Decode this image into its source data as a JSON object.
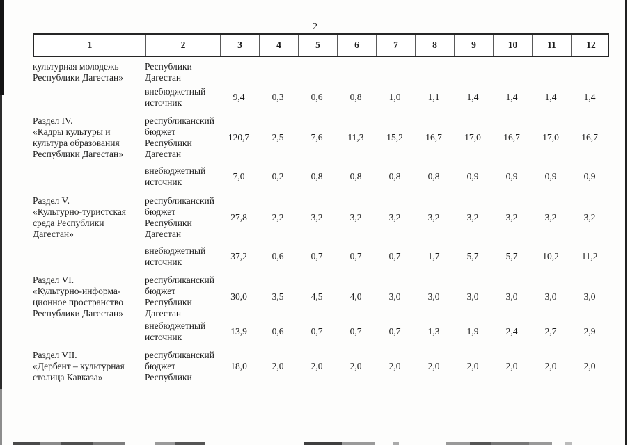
{
  "page_number": "2",
  "table": {
    "header_columns": [
      "1",
      "2",
      "3",
      "4",
      "5",
      "6",
      "7",
      "8",
      "9",
      "10",
      "11",
      "12"
    ],
    "rows": [
      {
        "section": "культурная молодежь\nРеспублики Дагестан»",
        "source": "Республики\nДагестан",
        "values": [
          "",
          "",
          "",
          "",
          "",
          "",
          "",
          "",
          "",
          ""
        ]
      },
      {
        "section": "",
        "source": "внебюджетный\nисточник",
        "values": [
          "9,4",
          "0,3",
          "0,6",
          "0,8",
          "1,0",
          "1,1",
          "1,4",
          "1,4",
          "1,4",
          "1,4"
        ]
      },
      {
        "section": "Раздел IV.\n«Кадры культуры и\nкультура образования\nРеспублики Дагестан»",
        "source": "республиканский\nбюджет\nРеспублики\nДагестан",
        "values": [
          "120,7",
          "2,5",
          "7,6",
          "11,3",
          "15,2",
          "16,7",
          "17,0",
          "16,7",
          "17,0",
          "16,7"
        ]
      },
      {
        "section": "",
        "source": "внебюджетный\nисточник",
        "values": [
          "7,0",
          "0,2",
          "0,8",
          "0,8",
          "0,8",
          "0,8",
          "0,9",
          "0,9",
          "0,9",
          "0,9"
        ]
      },
      {
        "section": "Раздел V.\n«Культурно-туристская\nсреда Республики\nДагестан»",
        "source": "республиканский\nбюджет\nРеспублики\nДагестан",
        "values": [
          "27,8",
          "2,2",
          "3,2",
          "3,2",
          "3,2",
          "3,2",
          "3,2",
          "3,2",
          "3,2",
          "3,2"
        ]
      },
      {
        "section": "",
        "source": "внебюджетный\nисточник",
        "values": [
          "37,2",
          "0,6",
          "0,7",
          "0,7",
          "0,7",
          "1,7",
          "5,7",
          "5,7",
          "10,2",
          "11,2"
        ]
      },
      {
        "section": "Раздел VI.\n«Культурно-информа-\nционное пространство\nРеспублики Дагестан»",
        "source": "республиканский\nбюджет\nРеспублики\nДагестан",
        "values": [
          "30,0",
          "3,5",
          "4,5",
          "4,0",
          "3,0",
          "3,0",
          "3,0",
          "3,0",
          "3,0",
          "3,0"
        ]
      },
      {
        "section": "",
        "source": "внебюджетный\nисточник",
        "values": [
          "13,9",
          "0,6",
          "0,7",
          "0,7",
          "0,7",
          "1,3",
          "1,9",
          "2,4",
          "2,7",
          "2,9"
        ]
      },
      {
        "section": "Раздел VII.\n«Дербент – культурная\nстолица Кавказа»",
        "source": "республиканский\nбюджет\nРеспублики",
        "values": [
          "18,0",
          "2,0",
          "2,0",
          "2,0",
          "2,0",
          "2,0",
          "2,0",
          "2,0",
          "2,0",
          "2,0"
        ]
      }
    ]
  }
}
